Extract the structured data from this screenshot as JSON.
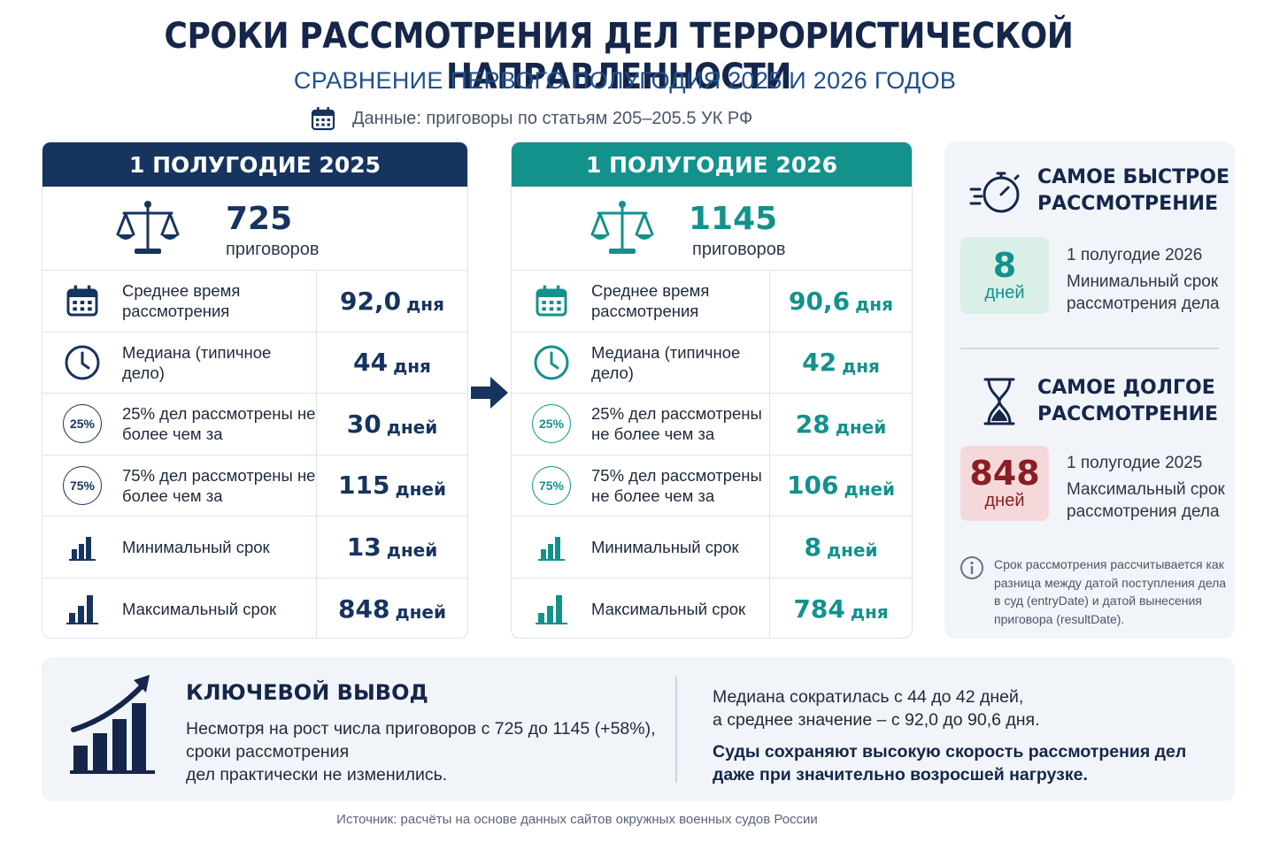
{
  "header": {
    "title": "СРОКИ РАССМОТРЕНИЯ ДЕЛ ТЕРРОРИСТИЧЕСКОЙ НАПРАВЛЕННОСТИ",
    "subtitle": "СРАВНЕНИЕ ПЕРВОГО ПОЛУГОДИЯ 2025 И 2026 ГОДОВ",
    "data_note": "Данные: приговоры по статьям 205–205.5 УК РФ"
  },
  "colors": {
    "navy": "#17345f",
    "teal": "#13928c",
    "fast_badge_bg": "#d9efe8",
    "slow_badge_bg": "#f5d9da",
    "slow_text": "#8b1e24"
  },
  "panel_2025": {
    "title": "1 ПОЛУГОДИЕ 2025",
    "count": "725",
    "count_label": "приговоров",
    "rows": [
      {
        "icon": "calendar-icon",
        "label": "Среднее время рассмотрения",
        "value": "92,0",
        "unit": "дня"
      },
      {
        "icon": "clock-icon",
        "label": "Медиана (типичное дело)",
        "value": "44",
        "unit": "дня"
      },
      {
        "icon": "percent-25-icon",
        "badge": "25%",
        "label": "25% дел рассмотрены не более чем за",
        "value": "30",
        "unit": "дней"
      },
      {
        "icon": "percent-75-icon",
        "badge": "75%",
        "label": "75% дел рассмотрены не более чем за",
        "value": "115",
        "unit": "дней"
      },
      {
        "icon": "bar-chart-icon",
        "label": "Минимальный срок",
        "value": "13",
        "unit": "дней"
      },
      {
        "icon": "bar-chart-icon",
        "label": "Максимальный срок",
        "value": "848",
        "unit": "дней"
      }
    ]
  },
  "panel_2026": {
    "title": "1 ПОЛУГОДИЕ 2026",
    "count": "1145",
    "count_label": "приговоров",
    "rows": [
      {
        "icon": "calendar-icon",
        "label": "Среднее время рассмотрения",
        "value": "90,6",
        "unit": "дня"
      },
      {
        "icon": "clock-icon",
        "label": "Медиана (типичное дело)",
        "value": "42",
        "unit": "дня"
      },
      {
        "icon": "percent-25-icon",
        "badge": "25%",
        "label": "25% дел рассмотрены не более чем за",
        "value": "28",
        "unit": "дней"
      },
      {
        "icon": "percent-75-icon",
        "badge": "75%",
        "label": "75% дел рассмотрены не более чем за",
        "value": "106",
        "unit": "дней"
      },
      {
        "icon": "bar-chart-icon",
        "label": "Минимальный срок",
        "value": "8",
        "unit": "дней"
      },
      {
        "icon": "bar-chart-icon",
        "label": "Максимальный срок",
        "value": "784",
        "unit": "дня"
      }
    ]
  },
  "side": {
    "fast_title_1": "САМОЕ БЫСТРОЕ",
    "fast_title_2": "РАССМОТРЕНИЕ",
    "fast_value": "8",
    "fast_unit": "дней",
    "fast_period": "1 полугодие 2026",
    "fast_desc_1": "Минимальный срок",
    "fast_desc_2": "рассмотрения дела",
    "slow_title_1": "САМОЕ ДОЛГОЕ",
    "slow_title_2": "РАССМОТРЕНИЕ",
    "slow_value": "848",
    "slow_unit": "дней",
    "slow_period": "1 полугодие 2025",
    "slow_desc_1": "Максимальный срок",
    "slow_desc_2": "рассмотрения дела",
    "note": "Срок рассмотрения рассчитывается как разница между датой поступления дела в суд (entryDate) и датой вынесения приговора (resultDate)."
  },
  "conclusion": {
    "heading": "КЛЮЧЕВОЙ ВЫВОД",
    "text_1": "Несмотря на рост числа приговоров с 725 до 1145 (+58%),",
    "text_2": "сроки рассмотрения",
    "text_3": "дел практически не изменились.",
    "right_1": "Медиана сократилась с 44 до 42 дней,",
    "right_2": "а среднее значение – с 92,0 до 90,6 дня.",
    "bold_1": "Суды сохраняют высокую скорость рассмотрения дел",
    "bold_2": "даже при значительно возросшей нагрузке."
  },
  "footer": {
    "source": "Источник: расчёты на основе данных сайтов окружных военных судов России"
  }
}
